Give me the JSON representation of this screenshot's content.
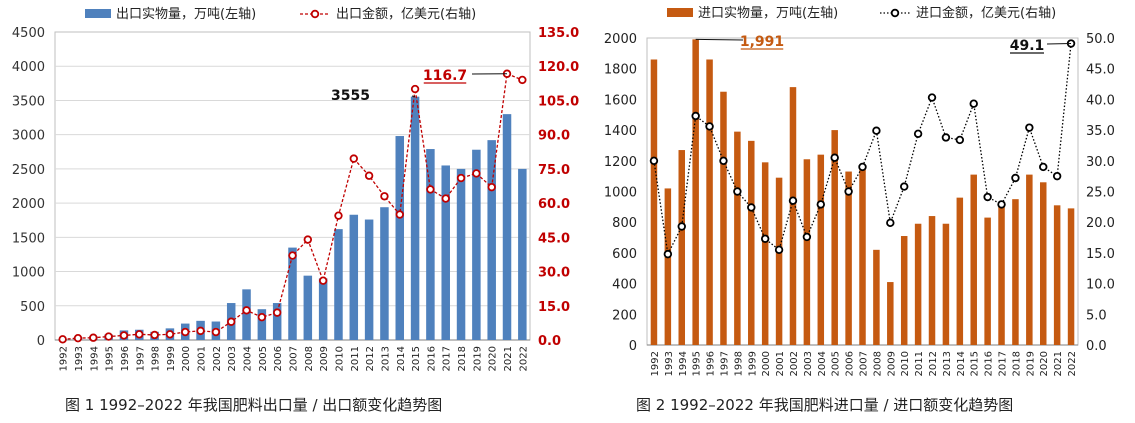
{
  "chart_data": [
    {
      "type": "bar+line",
      "categories": [
        "1992",
        "1993",
        "1994",
        "1995",
        "1996",
        "1997",
        "1998",
        "1999",
        "2000",
        "2001",
        "2002",
        "2003",
        "2004",
        "2005",
        "2006",
        "2007",
        "2008",
        "2009",
        "2010",
        "2011",
        "2012",
        "2013",
        "2014",
        "2015",
        "2016",
        "2017",
        "2018",
        "2019",
        "2020",
        "2021",
        "2022"
      ],
      "series": [
        {
          "name": "出口实物量，万吨(左轴)",
          "type": "bar",
          "axis": "left",
          "color": "#4f81bd",
          "values": [
            10,
            40,
            55,
            80,
            140,
            150,
            120,
            170,
            240,
            280,
            270,
            540,
            740,
            450,
            540,
            1350,
            940,
            900,
            1620,
            1830,
            1760,
            1940,
            2980,
            3555,
            2790,
            2550,
            2500,
            2780,
            2920,
            3300,
            2500
          ]
        },
        {
          "name": "出口金额，亿美元(右轴)",
          "type": "line",
          "axis": "right",
          "color": "#c00000",
          "values": [
            0.3,
            0.8,
            1.0,
            1.5,
            2.0,
            2.5,
            2.2,
            2.5,
            3.5,
            4.0,
            3.5,
            8.0,
            13.0,
            10.0,
            12.0,
            37.0,
            44.0,
            26.0,
            54.5,
            79.5,
            72.0,
            63.0,
            55.0,
            110.0,
            66.0,
            62.0,
            71.0,
            73.0,
            67.0,
            116.7,
            114.0
          ]
        }
      ],
      "y_left": {
        "min": 0,
        "max": 4500,
        "ticks": [
          "0",
          "500",
          "1000",
          "1500",
          "2000",
          "2500",
          "3000",
          "3500",
          "4000",
          "4500"
        ]
      },
      "y_right": {
        "min": 0,
        "max": 135,
        "ticks": [
          "0.0",
          "15.0",
          "30.0",
          "45.0",
          "60.0",
          "75.0",
          "90.0",
          "105.0",
          "120.0",
          "135.0"
        ]
      },
      "annotations": [
        {
          "series": 0,
          "index": 23,
          "label": "3555"
        },
        {
          "series": 1,
          "index": 29,
          "label": "116.7"
        }
      ],
      "grid": true,
      "legend": "top"
    },
    {
      "type": "bar+line",
      "categories": [
        "1992",
        "1993",
        "1994",
        "1995",
        "1996",
        "1997",
        "1998",
        "1999",
        "2000",
        "2001",
        "2002",
        "2003",
        "2004",
        "2005",
        "2006",
        "2007",
        "2008",
        "2009",
        "2010",
        "2011",
        "2012",
        "2013",
        "2014",
        "2015",
        "2016",
        "2017",
        "2018",
        "2019",
        "2020",
        "2021",
        "2022"
      ],
      "series": [
        {
          "name": "进口实物量，万吨(左轴)",
          "type": "bar",
          "axis": "left",
          "color": "#c55a11",
          "values": [
            1860,
            1020,
            1270,
            1991,
            1860,
            1650,
            1390,
            1330,
            1190,
            1090,
            1680,
            1210,
            1240,
            1400,
            1130,
            1160,
            620,
            410,
            710,
            790,
            840,
            790,
            960,
            1110,
            830,
            920,
            950,
            1110,
            1060,
            910,
            890
          ]
        },
        {
          "name": "进口金额，亿美元(右轴)",
          "type": "line",
          "axis": "right",
          "color": "#000000",
          "values": [
            30.0,
            14.8,
            19.3,
            37.3,
            35.6,
            30.0,
            25.0,
            22.4,
            17.3,
            15.5,
            23.5,
            17.6,
            22.9,
            30.5,
            25.0,
            29.0,
            34.9,
            19.9,
            25.8,
            34.4,
            40.3,
            33.8,
            33.4,
            39.3,
            24.1,
            22.9,
            27.2,
            35.4,
            29.0,
            27.5,
            49.1
          ]
        }
      ],
      "y_left": {
        "min": 0,
        "max": 2000,
        "ticks": [
          "0",
          "200",
          "400",
          "600",
          "800",
          "1000",
          "1200",
          "1400",
          "1600",
          "1800",
          "2000"
        ]
      },
      "y_right": {
        "min": 0,
        "max": 50,
        "ticks": [
          "0.0",
          "5.0",
          "10.0",
          "15.0",
          "20.0",
          "25.0",
          "30.0",
          "35.0",
          "40.0",
          "45.0",
          "50.0"
        ]
      },
      "annotations": [
        {
          "series": 0,
          "index": 3,
          "label": "1,991"
        },
        {
          "series": 1,
          "index": 30,
          "label": "49.1"
        }
      ],
      "grid": false,
      "legend": "top"
    }
  ],
  "captions": {
    "fig1": "图 1  1992–2022 年我国肥料出口量 / 出口额变化趋势图",
    "fig2": "图 2  1992–2022 年我国肥料进口量 / 进口额变化趋势图"
  }
}
